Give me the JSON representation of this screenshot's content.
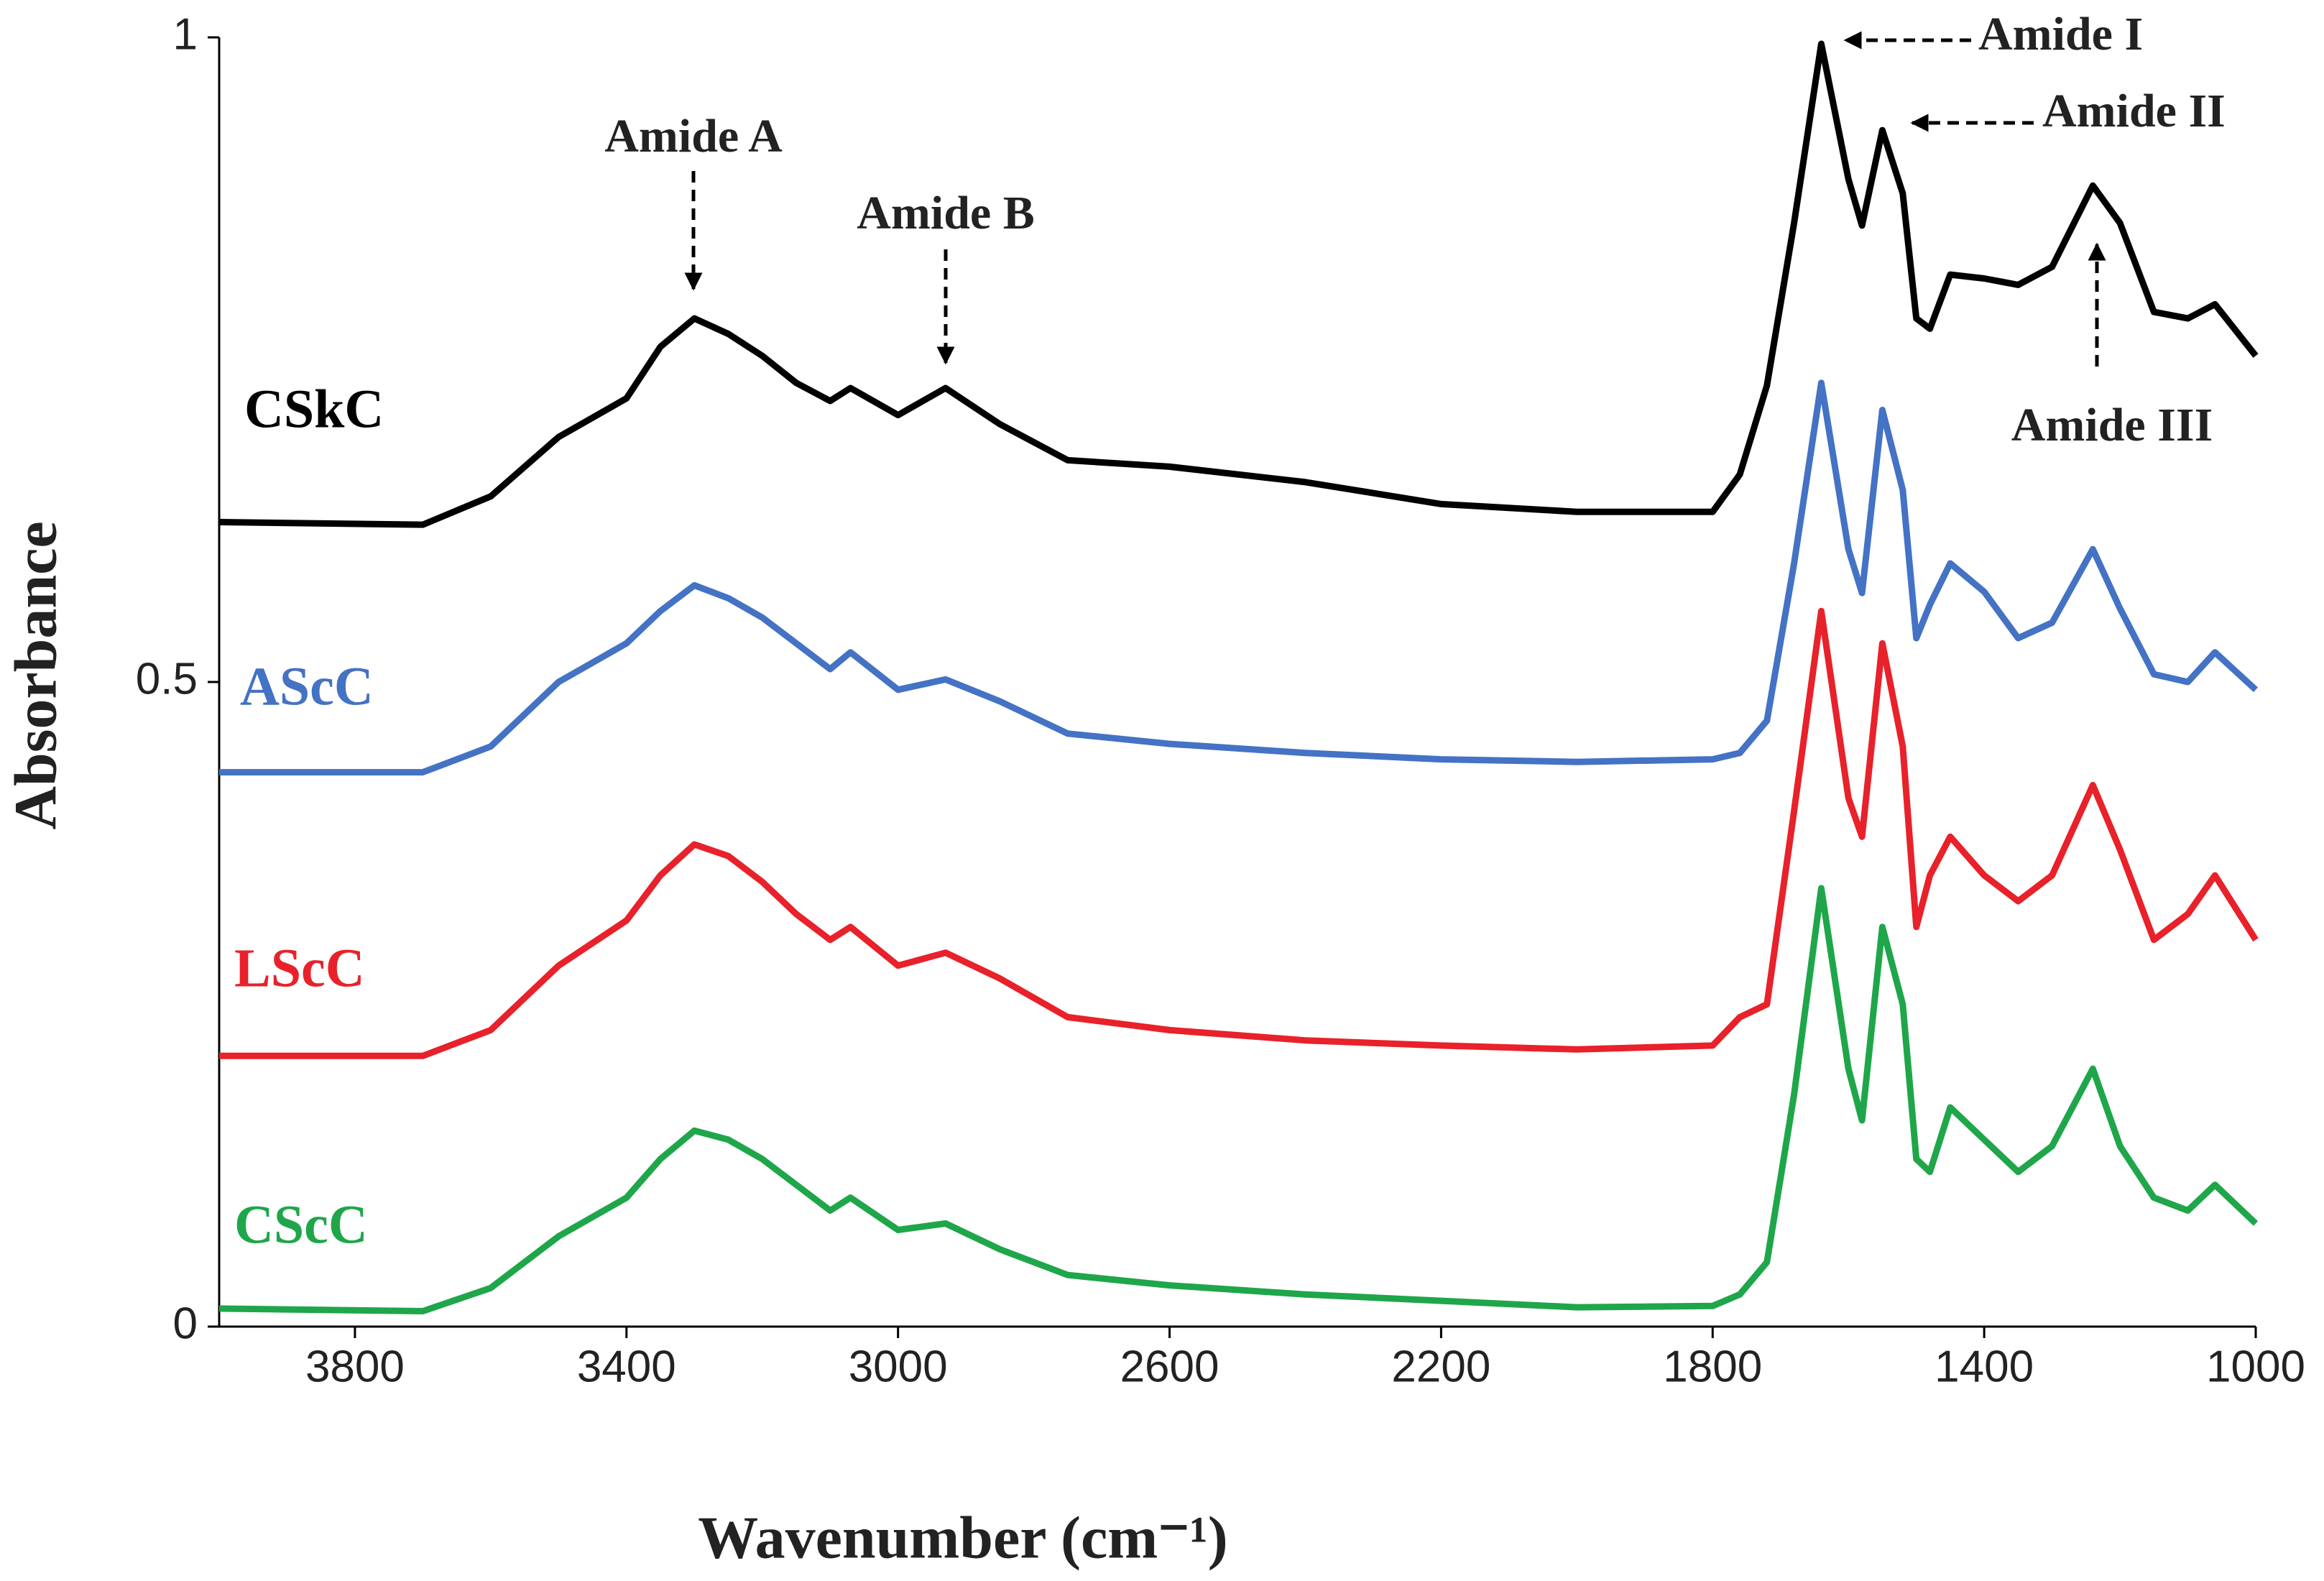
{
  "chart_data": {
    "type": "line",
    "xlabel": "Wavenumber (cm⁻¹)",
    "ylabel": "Absorbance",
    "xlim": [
      4000,
      1000
    ],
    "ylim": [
      0,
      1
    ],
    "xticks": [
      3800,
      3400,
      3000,
      2600,
      2200,
      1800,
      1400,
      1000
    ],
    "yticks": [
      0,
      0.5,
      1
    ],
    "annotations": [
      "Amide A",
      "Amide B",
      "Amide I",
      "Amide II",
      "Amide III"
    ],
    "x": [
      4000,
      3700,
      3600,
      3500,
      3400,
      3350,
      3300,
      3250,
      3200,
      3150,
      3100,
      3070,
      3000,
      2930,
      2850,
      2750,
      2600,
      2400,
      2200,
      2000,
      1800,
      1760,
      1720,
      1680,
      1640,
      1600,
      1580,
      1550,
      1520,
      1500,
      1480,
      1450,
      1400,
      1350,
      1300,
      1240,
      1200,
      1150,
      1100,
      1060,
      1000
    ],
    "series": [
      {
        "name": "CSkC",
        "color": "#000000",
        "values": [
          0.624,
          0.622,
          0.644,
          0.69,
          0.72,
          0.76,
          0.782,
          0.77,
          0.753,
          0.732,
          0.718,
          0.728,
          0.707,
          0.728,
          0.7,
          0.672,
          0.667,
          0.655,
          0.638,
          0.632,
          0.632,
          0.661,
          0.73,
          0.856,
          0.995,
          0.89,
          0.854,
          0.928,
          0.879,
          0.782,
          0.774,
          0.816,
          0.813,
          0.808,
          0.822,
          0.885,
          0.856,
          0.787,
          0.782,
          0.793,
          0.753
        ]
      },
      {
        "name": "AScC",
        "color": "#4472c4",
        "values": [
          0.43,
          0.43,
          0.45,
          0.5,
          0.53,
          0.555,
          0.575,
          0.565,
          0.55,
          0.53,
          0.51,
          0.523,
          0.494,
          0.502,
          0.485,
          0.46,
          0.452,
          0.445,
          0.44,
          0.438,
          0.44,
          0.445,
          0.47,
          0.592,
          0.732,
          0.603,
          0.569,
          0.711,
          0.649,
          0.534,
          0.56,
          0.592,
          0.57,
          0.534,
          0.546,
          0.603,
          0.557,
          0.506,
          0.5,
          0.523,
          0.494
        ]
      },
      {
        "name": "LScC",
        "color": "#e8212a",
        "values": [
          0.21,
          0.21,
          0.23,
          0.28,
          0.315,
          0.35,
          0.374,
          0.365,
          0.345,
          0.32,
          0.3,
          0.31,
          0.28,
          0.29,
          0.27,
          0.24,
          0.23,
          0.222,
          0.218,
          0.215,
          0.218,
          0.24,
          0.25,
          0.4,
          0.555,
          0.41,
          0.38,
          0.53,
          0.45,
          0.31,
          0.35,
          0.38,
          0.35,
          0.33,
          0.35,
          0.42,
          0.37,
          0.3,
          0.32,
          0.35,
          0.3
        ]
      },
      {
        "name": "CScC",
        "color": "#1fa64a",
        "values": [
          0.014,
          0.012,
          0.03,
          0.07,
          0.1,
          0.13,
          0.152,
          0.145,
          0.13,
          0.11,
          0.09,
          0.1,
          0.075,
          0.08,
          0.06,
          0.04,
          0.032,
          0.025,
          0.02,
          0.015,
          0.016,
          0.025,
          0.05,
          0.18,
          0.34,
          0.2,
          0.16,
          0.31,
          0.25,
          0.13,
          0.12,
          0.17,
          0.145,
          0.12,
          0.14,
          0.2,
          0.14,
          0.1,
          0.09,
          0.11,
          0.08
        ]
      }
    ]
  }
}
